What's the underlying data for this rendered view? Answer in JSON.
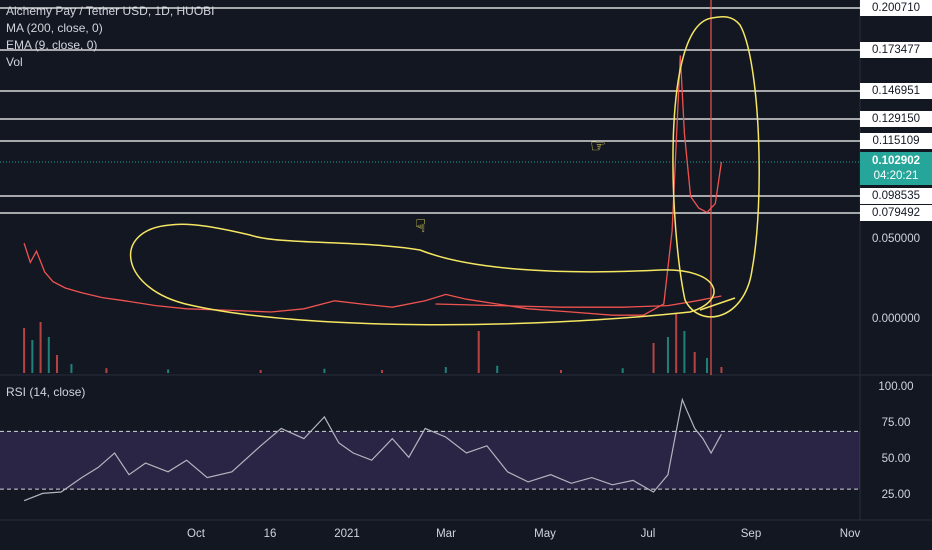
{
  "legend": {
    "symbol": "Alchemy Pay / Tether USD, 1D, HUOBI",
    "ma": "MA (200, close, 0)",
    "ema": "EMA (9, close, 0)",
    "vol": "Vol"
  },
  "rsi_legend": "RSI (14, close)",
  "price_levels": [
    {
      "label": "0.200710",
      "value": 0.20071
    },
    {
      "label": "0.173477",
      "value": 0.173477
    },
    {
      "label": "0.146951",
      "value": 0.146951
    },
    {
      "label": "0.129150",
      "value": 0.12915
    },
    {
      "label": "0.115109",
      "value": 0.115109
    },
    {
      "label": "0.098535",
      "value": 0.098535
    },
    {
      "label": "0.079492",
      "value": 0.079492
    }
  ],
  "current_price": {
    "value": "0.102902",
    "countdown": "04:20:21"
  },
  "price_axis": [
    "0.050000",
    "0.000000"
  ],
  "rsi_axis": [
    "100.00",
    "75.00",
    "50.00",
    "25.00"
  ],
  "time_axis": [
    "Oct",
    "16",
    "2021",
    "Mar",
    "May",
    "Jul",
    "Sep",
    "Nov"
  ],
  "colors": {
    "background": "#131722",
    "up": "#26a69a",
    "down": "#ef5350",
    "ma": "#ef5350",
    "rsi_band": "#7e57c2",
    "annotation": "#f5e663"
  },
  "chart_data": {
    "type": "line",
    "title": "Alchemy Pay / Tether USD, 1D, HUOBI",
    "xlabel": "",
    "ylabel": "",
    "x_range": [
      "2020-09-20",
      "2021-11-10"
    ],
    "series": [
      {
        "name": "Alchemy Pay / Tether USD",
        "points": [
          [
            "2020-09-22",
            0.048
          ],
          [
            "2020-09-25",
            0.036
          ],
          [
            "2020-09-28",
            0.043
          ],
          [
            "2020-10-02",
            0.03
          ],
          [
            "2020-10-06",
            0.024
          ],
          [
            "2020-10-12",
            0.02
          ],
          [
            "2020-10-20",
            0.017
          ],
          [
            "2020-10-30",
            0.014
          ],
          [
            "2020-11-10",
            0.012
          ],
          [
            "2020-11-25",
            0.009
          ],
          [
            "2020-12-10",
            0.007
          ],
          [
            "2021-01-01",
            0.006
          ],
          [
            "2021-01-20",
            0.005
          ],
          [
            "2021-02-05",
            0.007
          ],
          [
            "2021-02-20",
            0.012
          ],
          [
            "2021-03-05",
            0.01
          ],
          [
            "2021-03-20",
            0.008
          ],
          [
            "2021-04-05",
            0.012
          ],
          [
            "2021-04-15",
            0.016
          ],
          [
            "2021-04-25",
            0.013
          ],
          [
            "2021-05-10",
            0.01
          ],
          [
            "2021-05-25",
            0.007
          ],
          [
            "2021-06-15",
            0.005
          ],
          [
            "2021-07-05",
            0.003
          ],
          [
            "2021-07-20",
            0.003
          ],
          [
            "2021-07-30",
            0.01
          ],
          [
            "2021-08-03",
            0.06
          ],
          [
            "2021-08-07",
            0.17
          ],
          [
            "2021-08-09",
            0.12
          ],
          [
            "2021-08-12",
            0.098
          ],
          [
            "2021-08-16",
            0.085
          ],
          [
            "2021-08-20",
            0.08
          ],
          [
            "2021-08-24",
            0.09
          ],
          [
            "2021-08-27",
            0.102902
          ]
        ]
      },
      {
        "name": "MA (200, close, 0)",
        "points": [
          [
            "2021-04-10",
            0.01
          ],
          [
            "2021-05-10",
            0.009
          ],
          [
            "2021-06-10",
            0.008
          ],
          [
            "2021-07-10",
            0.008
          ],
          [
            "2021-08-01",
            0.009
          ],
          [
            "2021-08-15",
            0.012
          ],
          [
            "2021-08-27",
            0.015
          ]
        ]
      }
    ],
    "rsi": {
      "name": "RSI (14, close)",
      "ylim": [
        0,
        100
      ],
      "bands": [
        30,
        70
      ],
      "points": [
        [
          "2020-09-22",
          22
        ],
        [
          "2020-10-01",
          27
        ],
        [
          "2020-10-10",
          28
        ],
        [
          "2020-10-20",
          38
        ],
        [
          "2020-10-28",
          45
        ],
        [
          "2020-11-05",
          55
        ],
        [
          "2020-11-12",
          40
        ],
        [
          "2020-11-20",
          48
        ],
        [
          "2020-12-01",
          42
        ],
        [
          "2020-12-10",
          50
        ],
        [
          "2020-12-20",
          38
        ],
        [
          "2021-01-01",
          42
        ],
        [
          "2021-01-15",
          60
        ],
        [
          "2021-01-25",
          72
        ],
        [
          "2021-02-05",
          65
        ],
        [
          "2021-02-15",
          80
        ],
        [
          "2021-02-22",
          62
        ],
        [
          "2021-03-01",
          55
        ],
        [
          "2021-03-10",
          50
        ],
        [
          "2021-03-20",
          65
        ],
        [
          "2021-03-28",
          52
        ],
        [
          "2021-04-05",
          72
        ],
        [
          "2021-04-15",
          66
        ],
        [
          "2021-04-25",
          55
        ],
        [
          "2021-05-05",
          60
        ],
        [
          "2021-05-15",
          42
        ],
        [
          "2021-05-25",
          35
        ],
        [
          "2021-06-05",
          40
        ],
        [
          "2021-06-15",
          34
        ],
        [
          "2021-06-25",
          38
        ],
        [
          "2021-07-05",
          33
        ],
        [
          "2021-07-15",
          36
        ],
        [
          "2021-07-25",
          28
        ],
        [
          "2021-08-01",
          40
        ],
        [
          "2021-08-05",
          70
        ],
        [
          "2021-08-08",
          92
        ],
        [
          "2021-08-10",
          85
        ],
        [
          "2021-08-14",
          72
        ],
        [
          "2021-08-18",
          65
        ],
        [
          "2021-08-22",
          55
        ],
        [
          "2021-08-27",
          68
        ]
      ]
    },
    "volume": [
      [
        "2020-09-22",
        0.75
      ],
      [
        "2020-09-26",
        0.55
      ],
      [
        "2020-09-30",
        0.85
      ],
      [
        "2020-10-04",
        0.6
      ],
      [
        "2020-10-08",
        0.3
      ],
      [
        "2020-10-15",
        0.15
      ],
      [
        "2020-11-01",
        0.08
      ],
      [
        "2020-12-01",
        0.06
      ],
      [
        "2021-01-15",
        0.05
      ],
      [
        "2021-02-15",
        0.07
      ],
      [
        "2021-03-15",
        0.05
      ],
      [
        "2021-04-15",
        0.1
      ],
      [
        "2021-05-01",
        0.7
      ],
      [
        "2021-05-10",
        0.12
      ],
      [
        "2021-06-10",
        0.05
      ],
      [
        "2021-07-10",
        0.08
      ],
      [
        "2021-07-25",
        0.5
      ],
      [
        "2021-08-01",
        0.6
      ],
      [
        "2021-08-05",
        1.0
      ],
      [
        "2021-08-09",
        0.7
      ],
      [
        "2021-08-14",
        0.35
      ],
      [
        "2021-08-20",
        0.25
      ],
      [
        "2021-08-27",
        0.1
      ]
    ]
  }
}
